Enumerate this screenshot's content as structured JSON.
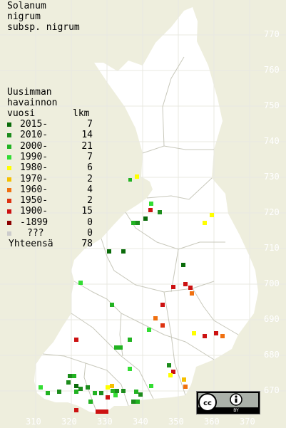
{
  "title": [
    "Solanum",
    "nigrum",
    "subsp. nigrum"
  ],
  "legend": {
    "heading": [
      "Uusimman",
      "havainnon",
      "vuosi"
    ],
    "count_header": "lkm",
    "rows": [
      {
        "label": "2015-",
        "count": "7",
        "color": "#0a6b0a"
      },
      {
        "label": "2010-",
        "count": "14",
        "color": "#1c8c1c"
      },
      {
        "label": "2000-",
        "count": "21",
        "color": "#22b322"
      },
      {
        "label": "1990-",
        "count": "7",
        "color": "#33dd33"
      },
      {
        "label": "1980-",
        "count": "6",
        "color": "#ffff00"
      },
      {
        "label": "1970-",
        "count": "2",
        "color": "#f5c000"
      },
      {
        "label": "1960-",
        "count": "4",
        "color": "#f07010"
      },
      {
        "label": "1950-",
        "count": "2",
        "color": "#dd3311"
      },
      {
        "label": "1900-",
        "count": "15",
        "color": "#cc1111"
      },
      {
        "label": "-1899",
        "count": "0",
        "color": "#8b0000"
      },
      {
        "label": "???",
        "count": "0",
        "color": "#cccccc"
      }
    ],
    "total_label": "Yhteensä",
    "total": "78"
  },
  "y_ticks": [
    "770",
    "760",
    "750",
    "740",
    "730",
    "720",
    "710",
    "700",
    "690",
    "680",
    "670"
  ],
  "x_ticks": [
    "310",
    "320",
    "330",
    "340",
    "350",
    "360",
    "370"
  ],
  "license": {
    "icon": "cc-by-icon",
    "text": "BY"
  }
}
